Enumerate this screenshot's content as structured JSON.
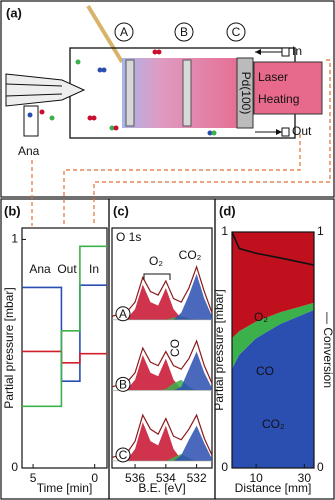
{
  "diagram": {
    "panel_label": "(a)",
    "markers": [
      "A",
      "B",
      "C"
    ],
    "inlet": "In",
    "outlet": "Out",
    "laser": [
      "Laser",
      "Heating"
    ],
    "sample": "Pd(100)",
    "analyzer": "Ana"
  },
  "chart_data": [
    {
      "type": "line",
      "panel_label": "(b)",
      "xlabel": "Time [min]",
      "ylabel": "Partial pressure [mbar]",
      "x": [
        5.9,
        2.7,
        2.7,
        1.2,
        1.2,
        -1
      ],
      "xlim": [
        5.9,
        -1
      ],
      "xticks": [
        5,
        0
      ],
      "ylim": [
        0,
        1.05
      ],
      "yticks": [
        0,
        1
      ],
      "annotations": [
        "Ana",
        "Out",
        "In"
      ],
      "series": [
        {
          "color": "#2a4fb0",
          "values": [
            0.79,
            0.79,
            0.38,
            0.38,
            0.8,
            0.8
          ]
        },
        {
          "color": "#d0202e",
          "values": [
            0.51,
            0.51,
            0.46,
            0.46,
            0.5,
            0.5
          ]
        },
        {
          "color": "#3cb04a",
          "values": [
            0.27,
            0.27,
            0.6,
            0.6,
            0.97,
            0.97
          ]
        }
      ]
    },
    {
      "type": "spectra",
      "panel_label": "(c)",
      "title": "O 1s",
      "xlabel": "B.E. [eV]",
      "x": [
        537.5,
        537,
        536.5,
        536,
        535.5,
        535,
        534.5,
        534,
        533.5,
        533,
        532.5,
        532,
        531.5,
        531
      ],
      "xlim": [
        537.5,
        531
      ],
      "xticks": [
        536,
        534,
        532
      ],
      "ylim": [
        -0.1,
        3.3
      ],
      "envelope_color": "#8b1a1a",
      "annotations": [
        "O₂",
        "CO₂",
        "CO"
      ],
      "spectra": [
        {
          "label": "A",
          "baseline": 2,
          "envelope": [
            2.05,
            2.08,
            2.12,
            2.25,
            2.6,
            2.4,
            2.35,
            2.55,
            2.3,
            2.25,
            2.45,
            2.75,
            2.4,
            2.1
          ],
          "components": [
            {
              "color": "#c8102e",
              "values": [
                2,
                2,
                2.02,
                2.15,
                2.5,
                2.25,
                2.2,
                2.45,
                2.15,
                2.02,
                2,
                2,
                2,
                2
              ]
            },
            {
              "color": "#3cb04a",
              "values": [
                2,
                2,
                2,
                2,
                2,
                2,
                2,
                2,
                2.03,
                2.05,
                2.02,
                2,
                2,
                2
              ]
            },
            {
              "color": "#2a4fb0",
              "values": [
                2,
                2,
                2,
                2,
                2,
                2,
                2,
                2,
                2,
                2.1,
                2.35,
                2.65,
                2.3,
                2.05
              ]
            }
          ]
        },
        {
          "label": "B",
          "baseline": 1,
          "envelope": [
            1.05,
            1.08,
            1.12,
            1.25,
            1.6,
            1.4,
            1.35,
            1.55,
            1.35,
            1.3,
            1.45,
            1.7,
            1.35,
            1.1
          ],
          "components": [
            {
              "color": "#c8102e",
              "values": [
                1,
                1,
                1.02,
                1.15,
                1.5,
                1.25,
                1.2,
                1.45,
                1.15,
                1.02,
                1,
                1,
                1,
                1
              ]
            },
            {
              "color": "#3cb04a",
              "values": [
                1,
                1,
                1,
                1,
                1,
                1,
                1,
                1.02,
                1.1,
                1.15,
                1.05,
                1,
                1,
                1
              ]
            },
            {
              "color": "#2a4fb0",
              "values": [
                1,
                1,
                1,
                1,
                1,
                1,
                1,
                1,
                1,
                1.05,
                1.3,
                1.55,
                1.25,
                1.03
              ]
            }
          ]
        },
        {
          "label": "C",
          "baseline": 0,
          "envelope": [
            0.05,
            0.08,
            0.12,
            0.28,
            0.65,
            0.45,
            0.38,
            0.6,
            0.35,
            0.3,
            0.45,
            0.65,
            0.32,
            0.08
          ],
          "components": [
            {
              "color": "#c8102e",
              "values": [
                0,
                0,
                0.02,
                0.17,
                0.55,
                0.28,
                0.22,
                0.5,
                0.17,
                0.02,
                0,
                0,
                0,
                0
              ]
            },
            {
              "color": "#3cb04a",
              "values": [
                0,
                0,
                0,
                0,
                0,
                0,
                0,
                0,
                0.05,
                0.1,
                0.04,
                0,
                0,
                0
              ]
            },
            {
              "color": "#2a4fb0",
              "values": [
                0,
                0,
                0,
                0,
                0,
                0,
                0,
                0,
                0,
                0.08,
                0.3,
                0.5,
                0.25,
                0.03
              ]
            }
          ]
        }
      ]
    },
    {
      "type": "stacked_area",
      "panel_label": "(d)",
      "xlabel": "Distance [mm]",
      "ylabel": "Partial pressure [mbar]",
      "y2label": "— Conversion",
      "x": [
        0,
        3,
        10,
        20,
        34
      ],
      "xlim": [
        0,
        34
      ],
      "xticks": [
        10,
        30
      ],
      "ylim": [
        0,
        1
      ],
      "yticks": [
        0,
        1
      ],
      "y2lim": [
        0,
        1
      ],
      "y2ticks": [
        0,
        1
      ],
      "series": [
        {
          "name": "CO₂",
          "color": "#2a4fb0",
          "values": [
            0.42,
            0.48,
            0.55,
            0.61,
            0.67
          ]
        },
        {
          "name": "CO",
          "color": "#3cb04a",
          "values": [
            0.13,
            0.1,
            0.07,
            0.05,
            0.03
          ]
        },
        {
          "name": "O₂",
          "color": "#c0101e",
          "values": [
            0.45,
            0.42,
            0.38,
            0.34,
            0.3
          ]
        },
        {
          "axis": "y2",
          "color": "#111111",
          "values": [
            1,
            0.93,
            0.91,
            0.89,
            0.86
          ]
        }
      ]
    }
  ]
}
